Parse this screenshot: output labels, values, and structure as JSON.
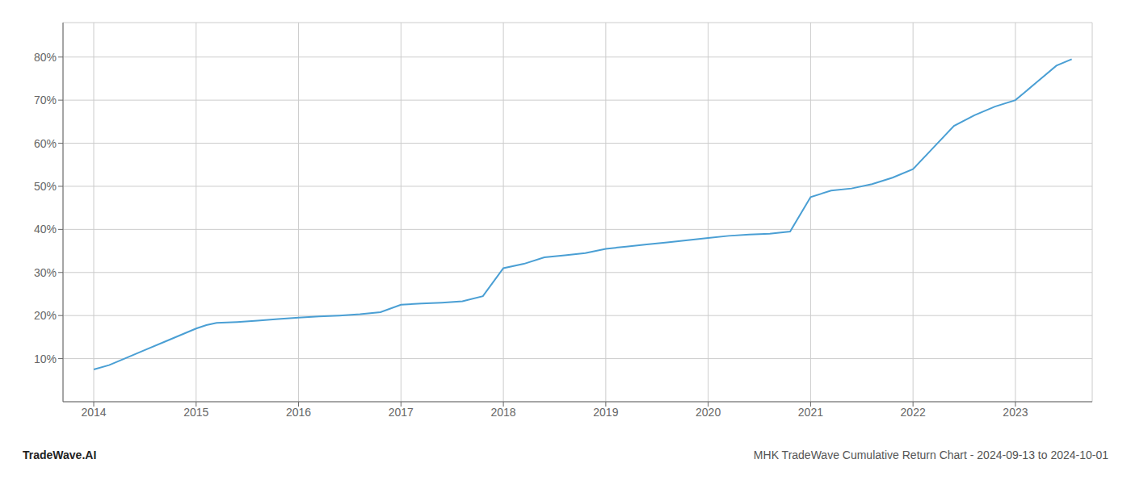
{
  "chart_data": {
    "type": "line",
    "title": "MHK TradeWave Cumulative Return Chart - 2024-09-13 to 2024-10-01",
    "annotations": [
      "TradeWave.AI"
    ],
    "color": "#4a9fd4",
    "x": [
      2014.0,
      2014.15,
      2014.3,
      2014.5,
      2014.7,
      2014.85,
      2015.0,
      2015.1,
      2015.2,
      2015.4,
      2015.6,
      2015.8,
      2016.0,
      2016.2,
      2016.4,
      2016.6,
      2016.8,
      2017.0,
      2017.2,
      2017.4,
      2017.6,
      2017.8,
      2018.0,
      2018.2,
      2018.4,
      2018.6,
      2018.8,
      2019.0,
      2019.2,
      2019.4,
      2019.6,
      2019.8,
      2020.0,
      2020.2,
      2020.4,
      2020.6,
      2020.8,
      2021.0,
      2021.2,
      2021.4,
      2021.6,
      2021.8,
      2022.0,
      2022.2,
      2022.4,
      2022.6,
      2022.8,
      2023.0,
      2023.2,
      2023.4,
      2023.55
    ],
    "values": [
      7.5,
      8.5,
      10.0,
      12.0,
      14.0,
      15.5,
      17.0,
      17.8,
      18.3,
      18.5,
      18.8,
      19.2,
      19.5,
      19.8,
      20.0,
      20.3,
      20.8,
      22.5,
      22.8,
      23.0,
      23.3,
      24.5,
      31.0,
      32.0,
      33.5,
      34.0,
      34.5,
      35.5,
      36.0,
      36.5,
      37.0,
      37.5,
      38.0,
      38.5,
      38.8,
      39.0,
      39.5,
      47.5,
      49.0,
      49.5,
      50.5,
      52.0,
      54.0,
      59.0,
      64.0,
      66.5,
      68.5,
      70.0,
      74.0,
      78.0,
      79.5
    ],
    "xlim": [
      2013.7,
      2023.75
    ],
    "ylim": [
      0,
      88
    ],
    "xticks": [
      2014,
      2015,
      2016,
      2017,
      2018,
      2019,
      2020,
      2021,
      2022,
      2023
    ],
    "yticks": [
      {
        "value": 10,
        "label": "10%"
      },
      {
        "value": 20,
        "label": "20%"
      },
      {
        "value": 30,
        "label": "30%"
      },
      {
        "value": 40,
        "label": "40%"
      },
      {
        "value": 50,
        "label": "50%"
      },
      {
        "value": 60,
        "label": "60%"
      },
      {
        "value": 70,
        "label": "70%"
      },
      {
        "value": 80,
        "label": "80%"
      }
    ],
    "grid": true
  }
}
